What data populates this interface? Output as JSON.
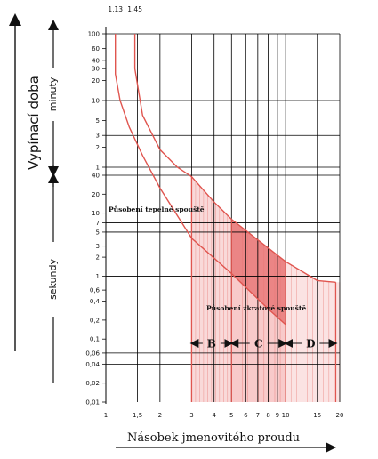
{
  "chart_data": {
    "type": "area",
    "ylabel": "Vypínací doba",
    "xlabel": "Násobek jmenovitého proudu",
    "y_groups": {
      "minutes": "minuty",
      "seconds": "sekundy"
    },
    "x_scale": "log",
    "xlim": [
      1,
      20
    ],
    "x_ticks": [
      {
        "v": 1,
        "label": "1"
      },
      {
        "v": 1.5,
        "label": "1,5"
      },
      {
        "v": 2,
        "label": "2"
      },
      {
        "v": 3,
        "label": "3"
      },
      {
        "v": 4,
        "label": "4"
      },
      {
        "v": 5,
        "label": "5"
      },
      {
        "v": 6,
        "label": "6"
      },
      {
        "v": 7,
        "label": "7"
      },
      {
        "v": 8,
        "label": "8"
      },
      {
        "v": 9,
        "label": "9"
      },
      {
        "v": 10,
        "label": "10"
      },
      {
        "v": 15,
        "label": "15"
      },
      {
        "v": 20,
        "label": "20"
      }
    ],
    "top_markers": [
      {
        "v": 1.13,
        "label": "1,13"
      },
      {
        "v": 1.45,
        "label": "1,45"
      }
    ],
    "y_scale": "log",
    "y_unit": "seconds",
    "ylim_seconds": [
      0.01,
      6000
    ],
    "minute_ticks": [
      {
        "min": 100,
        "label": "100"
      },
      {
        "min": 60,
        "label": "60"
      },
      {
        "min": 40,
        "label": "40"
      },
      {
        "min": 30,
        "label": "30"
      },
      {
        "min": 20,
        "label": "20"
      },
      {
        "min": 10,
        "label": "10"
      },
      {
        "min": 5,
        "label": "5"
      },
      {
        "min": 3,
        "label": "3"
      },
      {
        "min": 2,
        "label": "2"
      },
      {
        "min": 1,
        "label": "1"
      }
    ],
    "second_ticks": [
      {
        "s": 40,
        "label": "40"
      },
      {
        "s": 20,
        "label": "20"
      },
      {
        "s": 10,
        "label": "10"
      },
      {
        "s": 7,
        "label": "7"
      },
      {
        "s": 5,
        "label": "5"
      },
      {
        "s": 3,
        "label": "3"
      },
      {
        "s": 2,
        "label": "2"
      },
      {
        "s": 1,
        "label": "1"
      },
      {
        "s": 0.6,
        "label": "0,6"
      },
      {
        "s": 0.4,
        "label": "0,4"
      },
      {
        "s": 0.2,
        "label": "0,2"
      },
      {
        "s": 0.1,
        "label": "0,1"
      },
      {
        "s": 0.06,
        "label": "0,06"
      },
      {
        "s": 0.04,
        "label": "0,04"
      },
      {
        "s": 0.02,
        "label": "0,02"
      },
      {
        "s": 0.01,
        "label": "0,01"
      }
    ],
    "grid": true,
    "grid_lines_seconds": [
      6000,
      600,
      180,
      60,
      40,
      10,
      7,
      5,
      1,
      0.06,
      0.04
    ],
    "left_curve": [
      [
        1.13,
        6000
      ],
      [
        1.13,
        1500
      ],
      [
        1.2,
        600
      ],
      [
        1.35,
        240
      ],
      [
        1.6,
        90
      ],
      [
        2,
        25
      ],
      [
        3,
        4
      ],
      [
        5,
        1.1
      ],
      [
        8,
        0.3
      ],
      [
        10,
        0.17
      ]
    ],
    "right_curve": [
      [
        1.45,
        6000
      ],
      [
        1.45,
        1800
      ],
      [
        1.6,
        360
      ],
      [
        2,
        110
      ],
      [
        2.5,
        60
      ],
      [
        3,
        38
      ],
      [
        4,
        15
      ],
      [
        5,
        8
      ],
      [
        10,
        1.7
      ],
      [
        15,
        0.85
      ],
      [
        19,
        0.8
      ]
    ],
    "zones": [
      {
        "label": "B",
        "from": 3,
        "to": 5
      },
      {
        "label": "C",
        "from": 5,
        "to": 10
      },
      {
        "label": "D",
        "from": 10,
        "to": 20
      }
    ],
    "annotations": {
      "thermal": "Působení tepelné spouště",
      "magnetic": "Působení zkratové spouště"
    },
    "colors": {
      "curve": "#e0554f",
      "fill_b": "#f7cccc",
      "fill_c": "#f5b8b8",
      "fill_d": "#f9d9d9",
      "overlap": "#e77373",
      "grid": "#000000",
      "text": "#111111"
    }
  }
}
